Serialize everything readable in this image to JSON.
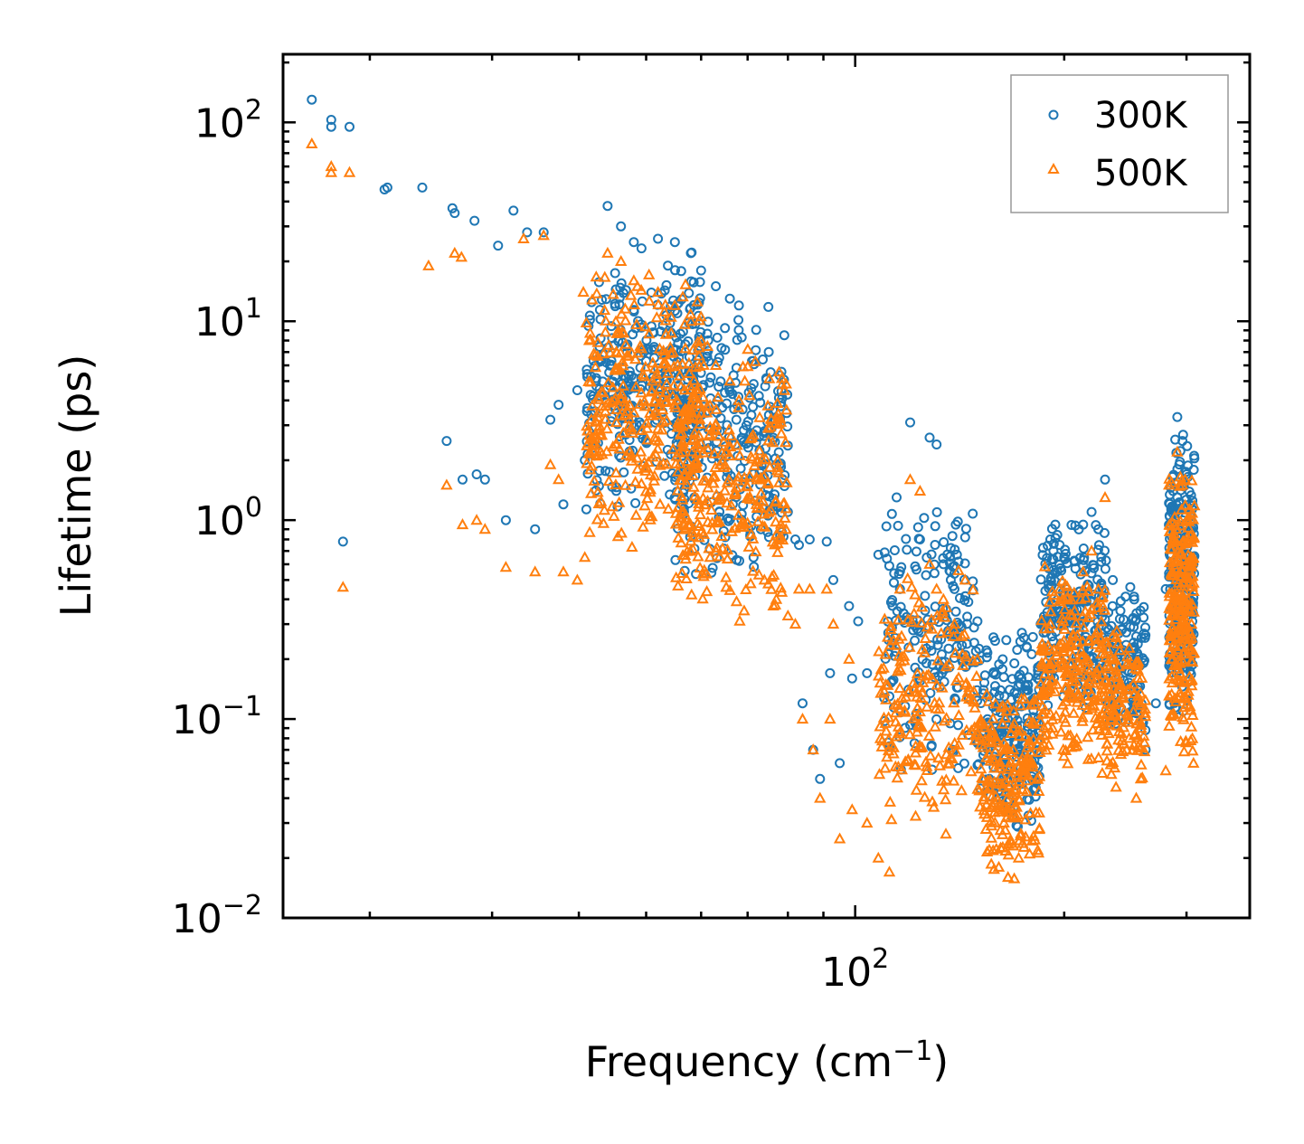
{
  "chart_data": {
    "type": "scatter",
    "title": "",
    "xlabel": {
      "base": "Frequency (cm",
      "sup": "−1",
      "tail": ")"
    },
    "ylabel": "Lifetime (ps)",
    "xscale": "log",
    "yscale": "log",
    "xlim": [
      15,
      370
    ],
    "ylim": [
      0.01,
      220
    ],
    "xticks": [
      {
        "value": 100,
        "base": "10",
        "exp": "2"
      }
    ],
    "yticks": [
      {
        "value": 0.01,
        "base": "10",
        "exp": "−2"
      },
      {
        "value": 0.1,
        "base": "10",
        "exp": "−1"
      },
      {
        "value": 1,
        "base": "10",
        "exp": "0"
      },
      {
        "value": 10,
        "base": "10",
        "exp": "1"
      },
      {
        "value": 100,
        "base": "10",
        "exp": "2"
      }
    ],
    "legend": {
      "position": "top-right"
    },
    "series": [
      {
        "name": "300K",
        "marker": "circle",
        "color": "#1f77b4",
        "points": [
          [
            16.5,
            130
          ],
          [
            17.6,
            103
          ],
          [
            17.6,
            95
          ],
          [
            18.7,
            95
          ],
          [
            18.3,
            0.78
          ],
          [
            21.2,
            47
          ],
          [
            21.0,
            46
          ],
          [
            23.8,
            47
          ],
          [
            26.3,
            37
          ],
          [
            26.5,
            35
          ],
          [
            28.3,
            32
          ],
          [
            30.6,
            24
          ],
          [
            32.2,
            36
          ],
          [
            35.6,
            28
          ],
          [
            33.7,
            28
          ],
          [
            25.8,
            2.5
          ],
          [
            27.2,
            1.6
          ],
          [
            28.5,
            1.7
          ],
          [
            29.3,
            1.6
          ],
          [
            31.4,
            1.0
          ],
          [
            34.6,
            0.9
          ],
          [
            36.4,
            3.2
          ],
          [
            37.4,
            3.8
          ],
          [
            38.0,
            1.2
          ],
          [
            39.8,
            4.5
          ],
          [
            40.8,
            2.0
          ],
          [
            44,
            38
          ],
          [
            46,
            30
          ],
          [
            48,
            25
          ],
          [
            52,
            26
          ],
          [
            55,
            25
          ],
          [
            58,
            22
          ],
          [
            60,
            18
          ],
          [
            63,
            15
          ],
          [
            66,
            13
          ],
          [
            68,
            12
          ],
          [
            71,
            6.3
          ],
          [
            73,
            3.9
          ],
          [
            74,
            2.8
          ],
          [
            77,
            1.9
          ],
          [
            80,
            1.1
          ],
          [
            82,
            0.8
          ],
          [
            83,
            0.75
          ],
          [
            86,
            0.8
          ],
          [
            91,
            0.78
          ],
          [
            93,
            0.5
          ],
          [
            98,
            0.37
          ],
          [
            101,
            0.31
          ],
          [
            84,
            0.12
          ],
          [
            87,
            0.07
          ],
          [
            89,
            0.05
          ],
          [
            92,
            0.17
          ],
          [
            95,
            0.06
          ],
          [
            99,
            0.16
          ],
          [
            104,
            0.17
          ],
          [
            108,
            0.67
          ],
          [
            112,
            0.13
          ],
          [
            116,
            0.45
          ],
          [
            120,
            3.1
          ],
          [
            124,
            0.8
          ],
          [
            128,
            2.6
          ],
          [
            131,
            2.4
          ],
          [
            134,
            0.6
          ],
          [
            139,
            0.45
          ],
          [
            144,
            0.82
          ],
          [
            150,
            0.31
          ],
          [
            156,
            0.05
          ],
          [
            161,
            0.04
          ],
          [
            166,
            0.045
          ],
          [
            172,
            0.07
          ],
          [
            178,
            0.12
          ],
          [
            185,
            0.3
          ],
          [
            191,
            0.8
          ],
          [
            197,
            0.75
          ],
          [
            200,
            0.65
          ],
          [
            207,
            0.62
          ],
          [
            213,
            0.95
          ],
          [
            219,
            1.1
          ],
          [
            224,
            0.9
          ],
          [
            229,
            1.6
          ],
          [
            235,
            0.5
          ],
          [
            241,
            0.35
          ],
          [
            248,
            0.2
          ],
          [
            254,
            0.26
          ],
          [
            262,
            0.07
          ],
          [
            271,
            0.12
          ],
          [
            280,
            0.45
          ],
          [
            287,
            1.4
          ],
          [
            291,
            3.3
          ],
          [
            296,
            2.5
          ],
          [
            300,
            1.7
          ],
          [
            303,
            1.2
          ],
          [
            305,
            0.9
          ],
          [
            307,
            0.6
          ]
        ],
        "clusters": [
          {
            "x": [
              41,
              60
            ],
            "y": [
              1.0,
              25.0
            ],
            "n": 320
          },
          {
            "x": [
              55,
              80
            ],
            "y": [
              0.45,
              14.0
            ],
            "n": 280
          },
          {
            "x": [
              110,
              150
            ],
            "y": [
              0.05,
              1.4
            ],
            "n": 200
          },
          {
            "x": [
              150,
              185
            ],
            "y": [
              0.025,
              0.3
            ],
            "n": 220
          },
          {
            "x": [
              185,
              230
            ],
            "y": [
              0.1,
              1.1
            ],
            "n": 240
          },
          {
            "x": [
              230,
              262
            ],
            "y": [
              0.08,
              0.5
            ],
            "n": 120
          },
          {
            "x": [
              283,
              308
            ],
            "y": [
              0.08,
              3.3
            ],
            "n": 240
          }
        ]
      },
      {
        "name": "500K",
        "marker": "triangle",
        "color": "#ff7f0e",
        "points": [
          [
            16.5,
            78
          ],
          [
            17.6,
            60
          ],
          [
            17.6,
            56
          ],
          [
            18.7,
            56
          ],
          [
            18.3,
            0.46
          ],
          [
            24.3,
            19
          ],
          [
            26.5,
            22
          ],
          [
            27.1,
            21
          ],
          [
            33.3,
            26
          ],
          [
            35.6,
            27
          ],
          [
            40.6,
            14
          ],
          [
            25.8,
            1.5
          ],
          [
            27.2,
            0.95
          ],
          [
            28.5,
            1.0
          ],
          [
            29.3,
            0.9
          ],
          [
            31.4,
            0.58
          ],
          [
            34.6,
            0.55
          ],
          [
            36.4,
            1.9
          ],
          [
            37.4,
            1.6
          ],
          [
            38.0,
            0.55
          ],
          [
            39.8,
            0.5
          ],
          [
            40.8,
            0.65
          ],
          [
            44,
            22
          ],
          [
            46,
            20
          ],
          [
            48,
            16
          ],
          [
            52,
            14
          ],
          [
            55,
            12
          ],
          [
            58,
            10
          ],
          [
            60,
            8
          ],
          [
            63,
            6
          ],
          [
            66,
            5
          ],
          [
            68,
            4
          ],
          [
            71,
            2.6
          ],
          [
            73,
            1.6
          ],
          [
            74,
            0.5
          ],
          [
            77,
            0.4
          ],
          [
            80,
            0.33
          ],
          [
            82,
            0.3
          ],
          [
            83,
            0.45
          ],
          [
            86,
            0.45
          ],
          [
            91,
            0.45
          ],
          [
            93,
            0.3
          ],
          [
            98,
            0.2
          ],
          [
            84,
            0.1
          ],
          [
            87,
            0.07
          ],
          [
            89,
            0.04
          ],
          [
            92,
            0.1
          ],
          [
            95,
            0.025
          ],
          [
            99,
            0.035
          ],
          [
            104,
            0.03
          ],
          [
            108,
            0.02
          ],
          [
            112,
            0.017
          ],
          [
            116,
            0.45
          ],
          [
            120,
            1.6
          ],
          [
            124,
            1.4
          ],
          [
            128,
            0.6
          ],
          [
            131,
            0.45
          ],
          [
            134,
            0.4
          ],
          [
            139,
            0.3
          ],
          [
            144,
            0.5
          ],
          [
            150,
            0.2
          ],
          [
            156,
            0.022
          ],
          [
            161,
            0.018
          ],
          [
            166,
            0.016
          ],
          [
            172,
            0.02
          ],
          [
            178,
            0.06
          ],
          [
            185,
            0.15
          ],
          [
            191,
            0.3
          ],
          [
            197,
            0.45
          ],
          [
            200,
            0.4
          ],
          [
            207,
            0.35
          ],
          [
            213,
            0.55
          ],
          [
            219,
            0.7
          ],
          [
            224,
            0.45
          ],
          [
            229,
            1.3
          ],
          [
            235,
            0.2
          ],
          [
            241,
            0.15
          ],
          [
            248,
            0.08
          ],
          [
            254,
            0.04
          ],
          [
            280,
            0.055
          ],
          [
            287,
            0.8
          ],
          [
            291,
            2.2
          ],
          [
            296,
            1.5
          ],
          [
            300,
            1.0
          ],
          [
            303,
            0.6
          ],
          [
            305,
            0.3
          ],
          [
            307,
            0.06
          ]
        ],
        "clusters": [
          {
            "x": [
              41,
              60
            ],
            "y": [
              0.6,
              20.0
            ],
            "n": 320
          },
          {
            "x": [
              55,
              80
            ],
            "y": [
              0.3,
              8.0
            ],
            "n": 280
          },
          {
            "x": [
              108,
              150
            ],
            "y": [
              0.025,
              0.6
            ],
            "n": 200
          },
          {
            "x": [
              150,
              185
            ],
            "y": [
              0.015,
              0.15
            ],
            "n": 220
          },
          {
            "x": [
              185,
              230
            ],
            "y": [
              0.05,
              0.6
            ],
            "n": 240
          },
          {
            "x": [
              230,
              262
            ],
            "y": [
              0.04,
              0.3
            ],
            "n": 120
          },
          {
            "x": [
              283,
              308
            ],
            "y": [
              0.055,
              2.2
            ],
            "n": 240
          }
        ]
      }
    ]
  }
}
